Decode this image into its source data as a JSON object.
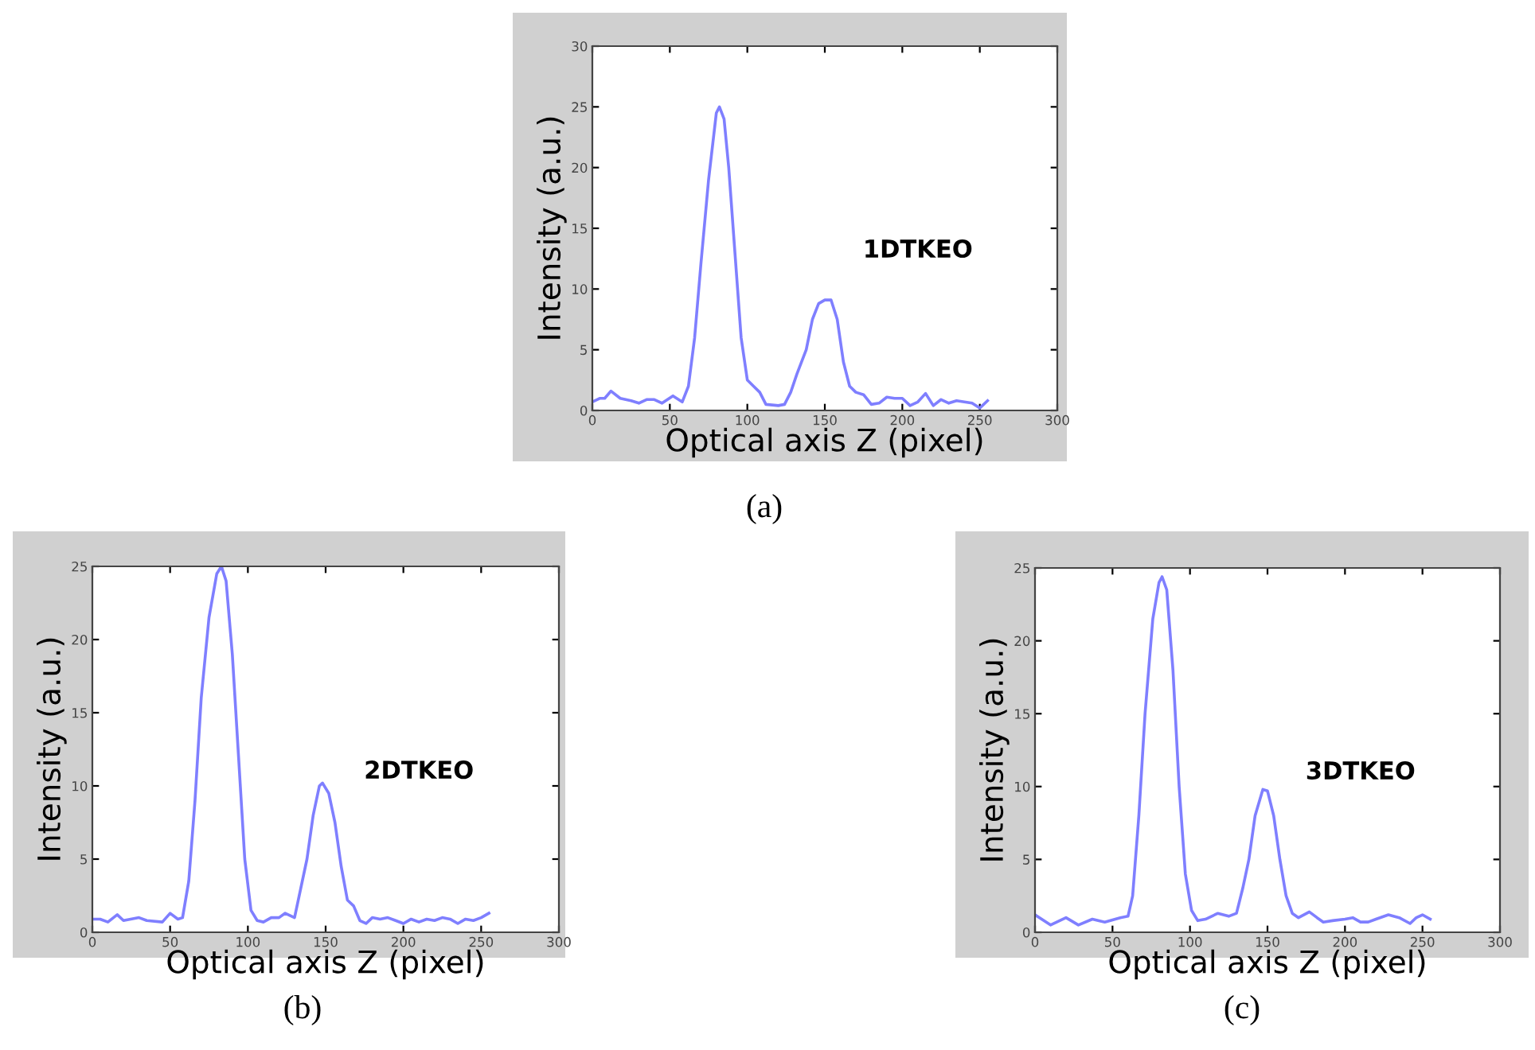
{
  "chart_data": [
    {
      "type": "line",
      "xlabel": "Optical axis Z (pixel)",
      "ylabel": "Intensity (a.u.)",
      "annotations": [
        "1DTKEO",
        "(a)"
      ],
      "xlim": [
        0,
        300
      ],
      "xticks": [
        0,
        50,
        100,
        150,
        200,
        250,
        300
      ],
      "ylim": [
        0,
        30
      ],
      "yticks": [
        0,
        5,
        10,
        15,
        20,
        25,
        30
      ],
      "grid": false,
      "legend": false,
      "series": [
        {
          "color": "#7f7fff",
          "x": [
            0,
            5,
            8,
            12,
            18,
            25,
            30,
            35,
            40,
            45,
            52,
            58,
            62,
            66,
            70,
            75,
            80,
            82,
            85,
            88,
            92,
            96,
            100,
            104,
            108,
            112,
            120,
            124,
            128,
            132,
            138,
            142,
            146,
            150,
            154,
            158,
            162,
            166,
            170,
            175,
            180,
            185,
            190,
            195,
            200,
            205,
            210,
            215,
            220,
            225,
            230,
            235,
            240,
            245,
            250,
            255
          ],
          "values": [
            0.7,
            1.0,
            1.0,
            1.6,
            1.0,
            0.8,
            0.6,
            0.9,
            0.9,
            0.6,
            1.2,
            0.7,
            2,
            6,
            12,
            19,
            24.5,
            25,
            24,
            20,
            13,
            6,
            2.5,
            2,
            1.5,
            0.5,
            0.4,
            0.5,
            1.5,
            3,
            5,
            7.5,
            8.8,
            9.1,
            9.1,
            7.5,
            4,
            2,
            1.5,
            1.3,
            0.5,
            0.6,
            1.1,
            1.0,
            1.0,
            0.4,
            0.7,
            1.4,
            0.4,
            0.9,
            0.6,
            0.8,
            0.7,
            0.6,
            0.2,
            0.8
          ]
        }
      ]
    },
    {
      "type": "line",
      "xlabel": "Optical axis Z (pixel)",
      "ylabel": "Intensity (a.u.)",
      "annotations": [
        "2DTKEO",
        "(b)"
      ],
      "xlim": [
        0,
        300
      ],
      "xticks": [
        0,
        50,
        100,
        150,
        200,
        250,
        300
      ],
      "ylim": [
        0,
        25
      ],
      "yticks": [
        0,
        5,
        10,
        15,
        20,
        25
      ],
      "grid": false,
      "legend": false,
      "series": [
        {
          "color": "#7f7fff",
          "x": [
            0,
            5,
            10,
            16,
            20,
            30,
            35,
            45,
            50,
            55,
            58,
            62,
            66,
            70,
            75,
            80,
            83,
            86,
            90,
            94,
            98,
            102,
            106,
            110,
            115,
            120,
            124,
            130,
            134,
            138,
            142,
            146,
            148,
            152,
            156,
            160,
            164,
            168,
            172,
            176,
            180,
            185,
            190,
            195,
            200,
            205,
            210,
            215,
            220,
            225,
            230,
            235,
            240,
            245,
            250,
            255
          ],
          "values": [
            0.9,
            0.9,
            0.7,
            1.2,
            0.8,
            1.0,
            0.8,
            0.7,
            1.3,
            0.9,
            1.0,
            3.5,
            9,
            16,
            21.5,
            24.5,
            25,
            24,
            19,
            12,
            5,
            1.5,
            0.8,
            0.7,
            1.0,
            1.0,
            1.3,
            1.0,
            3,
            5,
            8,
            10,
            10.2,
            9.5,
            7.5,
            4.5,
            2.2,
            1.8,
            0.8,
            0.6,
            1.0,
            0.9,
            1.0,
            0.8,
            0.6,
            0.9,
            0.7,
            0.9,
            0.8,
            1.0,
            0.9,
            0.6,
            0.9,
            0.8,
            1.0,
            1.3
          ]
        }
      ]
    },
    {
      "type": "line",
      "xlabel": "Optical axis Z (pixel)",
      "ylabel": "Intensity (a.u.)",
      "annotations": [
        "3DTKEO",
        "(c)"
      ],
      "xlim": [
        0,
        300
      ],
      "xticks": [
        0,
        50,
        100,
        150,
        200,
        250,
        300
      ],
      "ylim": [
        0,
        25
      ],
      "yticks": [
        0,
        5,
        10,
        15,
        20,
        25
      ],
      "grid": false,
      "legend": false,
      "series": [
        {
          "color": "#7f7fff",
          "x": [
            0,
            10,
            20,
            28,
            37,
            45,
            55,
            60,
            63,
            67,
            71,
            76,
            80,
            82,
            85,
            89,
            93,
            97,
            101,
            105,
            110,
            118,
            125,
            130,
            134,
            138,
            142,
            147,
            150,
            154,
            158,
            162,
            166,
            170,
            177,
            182,
            186,
            192,
            200,
            205,
            210,
            215,
            220,
            228,
            235,
            242,
            246,
            250,
            255
          ],
          "values": [
            1.2,
            0.5,
            1.0,
            0.5,
            0.9,
            0.7,
            1.0,
            1.1,
            2.5,
            8,
            15,
            21.5,
            24,
            24.4,
            23.5,
            18,
            10,
            4,
            1.5,
            0.8,
            0.9,
            1.3,
            1.1,
            1.3,
            3,
            5,
            8,
            9.8,
            9.7,
            8,
            5,
            2.5,
            1.3,
            1.0,
            1.4,
            1.0,
            0.7,
            0.8,
            0.9,
            1.0,
            0.7,
            0.7,
            0.9,
            1.2,
            1.0,
            0.6,
            1.0,
            1.2,
            0.9
          ]
        }
      ]
    }
  ]
}
